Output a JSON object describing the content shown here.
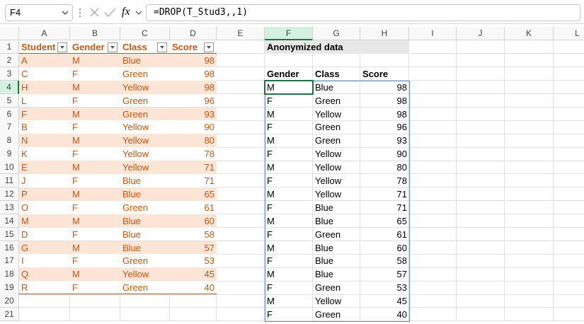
{
  "formula_bar": {
    "name_box": "F4",
    "function_label": "fx",
    "formula": "=DROP(T_Stud3,,1)"
  },
  "column_headers": [
    "A",
    "B",
    "C",
    "D",
    "E",
    "F",
    "G",
    "H",
    "I",
    "J",
    "K",
    "L"
  ],
  "row_headers": [
    "1",
    "2",
    "3",
    "4",
    "5",
    "6",
    "7",
    "8",
    "9",
    "10",
    "11",
    "12",
    "13",
    "14",
    "15",
    "16",
    "17",
    "18",
    "19",
    "20",
    "21"
  ],
  "table": {
    "headers": [
      "Student",
      "Gender",
      "Class",
      "Score"
    ],
    "rows": [
      [
        "A",
        "M",
        "Blue",
        98
      ],
      [
        "C",
        "F",
        "Green",
        98
      ],
      [
        "H",
        "M",
        "Yellow",
        98
      ],
      [
        "L",
        "F",
        "Green",
        96
      ],
      [
        "F",
        "M",
        "Green",
        93
      ],
      [
        "B",
        "F",
        "Yellow",
        90
      ],
      [
        "N",
        "M",
        "Yellow",
        80
      ],
      [
        "K",
        "F",
        "Yellow",
        78
      ],
      [
        "E",
        "M",
        "Yellow",
        71
      ],
      [
        "J",
        "F",
        "Blue",
        71
      ],
      [
        "P",
        "M",
        "Blue",
        65
      ],
      [
        "O",
        "F",
        "Green",
        61
      ],
      [
        "M",
        "M",
        "Blue",
        60
      ],
      [
        "D",
        "F",
        "Blue",
        58
      ],
      [
        "G",
        "M",
        "Blue",
        57
      ],
      [
        "I",
        "F",
        "Green",
        53
      ],
      [
        "Q",
        "M",
        "Yellow",
        45
      ],
      [
        "R",
        "F",
        "Green",
        40
      ]
    ]
  },
  "output": {
    "title": "Anonymized data",
    "headers": [
      "Gender",
      "Class",
      "Score"
    ],
    "rows": [
      [
        "M",
        "Blue",
        98
      ],
      [
        "F",
        "Green",
        98
      ],
      [
        "M",
        "Yellow",
        98
      ],
      [
        "F",
        "Green",
        96
      ],
      [
        "M",
        "Green",
        93
      ],
      [
        "F",
        "Yellow",
        90
      ],
      [
        "M",
        "Yellow",
        80
      ],
      [
        "F",
        "Yellow",
        78
      ],
      [
        "M",
        "Yellow",
        71
      ],
      [
        "F",
        "Blue",
        71
      ],
      [
        "M",
        "Blue",
        65
      ],
      [
        "F",
        "Green",
        61
      ],
      [
        "M",
        "Blue",
        60
      ],
      [
        "F",
        "Blue",
        58
      ],
      [
        "M",
        "Blue",
        57
      ],
      [
        "F",
        "Green",
        53
      ],
      [
        "M",
        "Yellow",
        45
      ],
      [
        "F",
        "Green",
        40
      ]
    ]
  }
}
